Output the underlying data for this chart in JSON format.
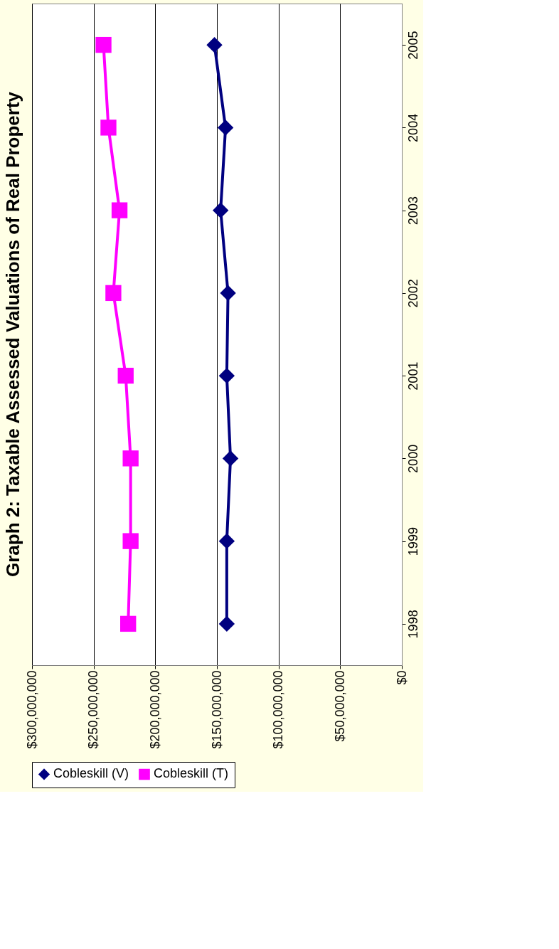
{
  "chart_data": {
    "type": "line",
    "orientation": "horizontal",
    "title": "Graph 2: Taxable Assessed Valuations of Real Property",
    "categories": [
      "2005",
      "2004",
      "2003",
      "2002",
      "2001",
      "2000",
      "1999",
      "1998"
    ],
    "series": [
      {
        "name": "Cobleskill (V)",
        "color": "#000080",
        "marker": "diamond",
        "values": [
          152000000,
          143000000,
          147000000,
          141000000,
          142000000,
          139000000,
          142000000,
          142000000
        ]
      },
      {
        "name": "Cobleskill (T)",
        "color": "#ff00ff",
        "marker": "square",
        "values": [
          242000000,
          238000000,
          229000000,
          234000000,
          224000000,
          220000000,
          220000000,
          222000000
        ]
      }
    ],
    "xlim": [
      300000000,
      0
    ],
    "xticks": [
      {
        "value": 0,
        "label": "$0"
      },
      {
        "value": 50000000,
        "label": "$50,000,000"
      },
      {
        "value": 100000000,
        "label": "$100,000,000"
      },
      {
        "value": 150000000,
        "label": "$150,000,000"
      },
      {
        "value": 200000000,
        "label": "$200,000,000"
      },
      {
        "value": 250000000,
        "label": "$250,000,000"
      },
      {
        "value": 300000000,
        "label": "$300,000,000"
      }
    ],
    "grid": "x",
    "legend": "bottom",
    "line_style": "solid"
  }
}
